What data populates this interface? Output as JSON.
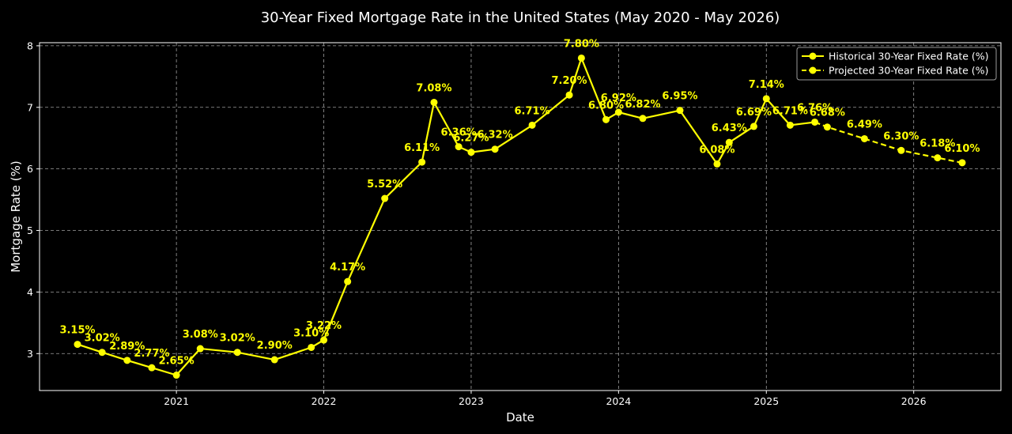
{
  "chart_data": {
    "type": "line",
    "title": "30-Year Fixed Mortgage Rate in the United States (May 2020 - May 2026)",
    "xlabel": "Date",
    "ylabel": "Mortgage Rate (%)",
    "xlim": [
      "2020-01-28",
      "2026-08-05"
    ],
    "ylim": [
      2.4,
      8.05
    ],
    "x_ticks": [
      "2021",
      "2022",
      "2023",
      "2024",
      "2025",
      "2026"
    ],
    "y_ticks": [
      "3",
      "4",
      "5",
      "6",
      "7",
      "8"
    ],
    "grid": true,
    "legend_position": "top-right",
    "line_color": "#ffff00",
    "series": [
      {
        "name": "Historical 30-Year Fixed Rate (%)",
        "style": "solid",
        "points": [
          {
            "x": "2020-05-01",
            "y": 3.15,
            "label": "3.15%"
          },
          {
            "x": "2020-07-01",
            "y": 3.02,
            "label": "3.02%"
          },
          {
            "x": "2020-09-01",
            "y": 2.89,
            "label": "2.89%"
          },
          {
            "x": "2020-11-01",
            "y": 2.77,
            "label": "2.77%"
          },
          {
            "x": "2021-01-01",
            "y": 2.65,
            "label": "2.65%"
          },
          {
            "x": "2021-03-01",
            "y": 3.08,
            "label": "3.08%"
          },
          {
            "x": "2021-06-01",
            "y": 3.02,
            "label": "3.02%"
          },
          {
            "x": "2021-09-01",
            "y": 2.9,
            "label": "2.90%"
          },
          {
            "x": "2021-12-01",
            "y": 3.1,
            "label": "3.10%"
          },
          {
            "x": "2022-01-01",
            "y": 3.22,
            "label": "3.22%"
          },
          {
            "x": "2022-03-01",
            "y": 4.17,
            "label": "4.17%"
          },
          {
            "x": "2022-06-01",
            "y": 5.52,
            "label": "5.52%"
          },
          {
            "x": "2022-09-01",
            "y": 6.11,
            "label": "6.11%"
          },
          {
            "x": "2022-10-01",
            "y": 7.08,
            "label": "7.08%"
          },
          {
            "x": "2022-12-01",
            "y": 6.36,
            "label": "6.36%"
          },
          {
            "x": "2023-01-01",
            "y": 6.27,
            "label": "6.27%"
          },
          {
            "x": "2023-03-01",
            "y": 6.32,
            "label": "6.32%"
          },
          {
            "x": "2023-06-01",
            "y": 6.71,
            "label": "6.71%"
          },
          {
            "x": "2023-09-01",
            "y": 7.2,
            "label": "7.20%"
          },
          {
            "x": "2023-10-01",
            "y": 7.8,
            "label": "7.80%"
          },
          {
            "x": "2023-12-01",
            "y": 6.8,
            "label": "6.80%"
          },
          {
            "x": "2024-01-01",
            "y": 6.92,
            "label": "6.92%"
          },
          {
            "x": "2024-03-01",
            "y": 6.82,
            "label": "6.82%"
          },
          {
            "x": "2024-06-01",
            "y": 6.95,
            "label": "6.95%"
          },
          {
            "x": "2024-09-01",
            "y": 6.08,
            "label": "6.08%"
          },
          {
            "x": "2024-10-01",
            "y": 6.43,
            "label": "6.43%"
          },
          {
            "x": "2024-12-01",
            "y": 6.69,
            "label": "6.69%"
          },
          {
            "x": "2025-01-01",
            "y": 7.14,
            "label": "7.14%"
          },
          {
            "x": "2025-03-01",
            "y": 6.71,
            "label": "6.71%"
          },
          {
            "x": "2025-05-01",
            "y": 6.76,
            "label": "6.76%"
          }
        ]
      },
      {
        "name": "Projected 30-Year Fixed Rate (%)",
        "style": "dashed",
        "points": [
          {
            "x": "2025-05-01",
            "y": 6.76,
            "label": ""
          },
          {
            "x": "2025-06-01",
            "y": 6.68,
            "label": "6.68%"
          },
          {
            "x": "2025-09-01",
            "y": 6.49,
            "label": "6.49%"
          },
          {
            "x": "2025-12-01",
            "y": 6.3,
            "label": "6.30%"
          },
          {
            "x": "2026-03-01",
            "y": 6.18,
            "label": "6.18%"
          },
          {
            "x": "2026-05-01",
            "y": 6.1,
            "label": "6.10%"
          }
        ]
      }
    ]
  }
}
